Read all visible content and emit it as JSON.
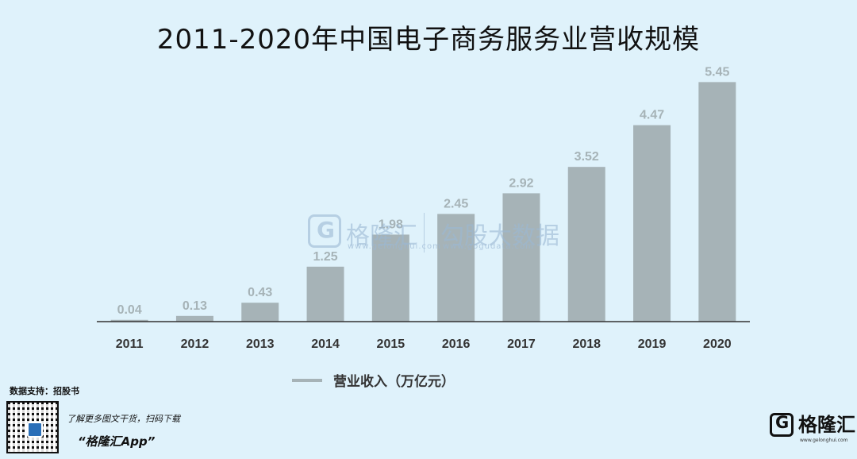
{
  "title": "2011-2020年中国电子商务服务业营收规模",
  "chart_data": {
    "type": "bar",
    "categories": [
      "2011",
      "2012",
      "2013",
      "2014",
      "2015",
      "2016",
      "2017",
      "2018",
      "2019",
      "2020"
    ],
    "series": [
      {
        "name": "营业收入（万亿元）",
        "values": [
          0.04,
          0.13,
          0.43,
          1.25,
          1.98,
          2.45,
          2.92,
          3.52,
          4.47,
          5.45
        ],
        "color": "#a6b3b7"
      }
    ],
    "ylim": [
      0,
      5.8
    ],
    "grid": false,
    "legend_position": "bottom",
    "data_labels": true
  },
  "legend_label": "营业收入（万亿元）",
  "source": "数据支持：招股书",
  "watermark": {
    "brand": "格隆汇",
    "brand_url": "www.gelonghui.com",
    "partner": "勾股大数据",
    "partner_url": "www.gogudata.com"
  },
  "footer": {
    "promo_line": "了解更多图文干货，扫码下载",
    "app_name": "“格隆汇App”",
    "brand": "格隆汇",
    "brand_url": "www.gelonghui.com"
  },
  "colors": {
    "background": "#dff2fb",
    "bar": "#a6b3b7",
    "label": "#a6b3b7",
    "axis": "#333333"
  }
}
